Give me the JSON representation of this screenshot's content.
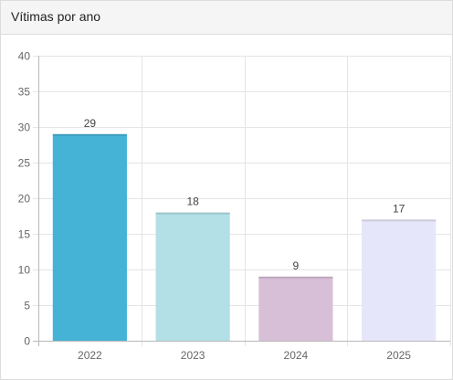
{
  "card": {
    "title": "Vítimas por ano"
  },
  "chart_data": {
    "type": "bar",
    "title": "Vítimas por ano",
    "categories": [
      "2022",
      "2023",
      "2024",
      "2025"
    ],
    "values": [
      29,
      18,
      9,
      17
    ],
    "colors": [
      "#45b3d6",
      "#b2e0e6",
      "#d8bfd8",
      "#e6e6fa"
    ],
    "ylim": [
      0,
      40
    ],
    "yticks": [
      0,
      5,
      10,
      15,
      20,
      25,
      30,
      35,
      40
    ],
    "grid": true,
    "legend": "none",
    "data_labels": true
  }
}
